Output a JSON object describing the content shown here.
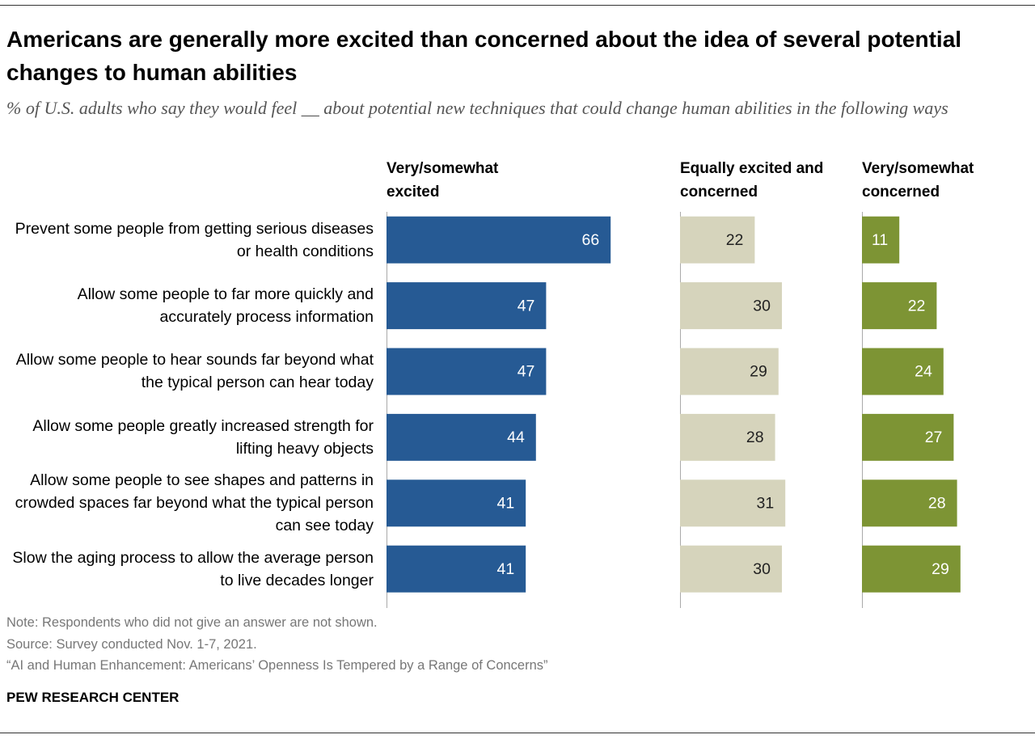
{
  "chart_data": {
    "type": "bar",
    "orientation": "horizontal",
    "title": "Americans are generally more excited than concerned about the idea of several potential changes to human abilities",
    "subtitle": "% of U.S. adults who say they would feel __ about potential new techniques that could change human abilities in the following ways",
    "categories": [
      "Prevent some people from getting serious diseases or health conditions",
      "Allow some people to far more quickly and accurately process information",
      "Allow some people to hear sounds far beyond what the typical person can hear today",
      "Allow some people greatly increased strength for lifting heavy objects",
      "Allow some people to see shapes and patterns in crowded spaces far beyond what the typical person can see today",
      "Slow the aging process to allow the average person to live decades longer"
    ],
    "series": [
      {
        "name": "Very/somewhat excited",
        "color": "#265a94",
        "label_color": "#ffffff",
        "values": [
          66,
          47,
          47,
          44,
          41,
          41
        ]
      },
      {
        "name": "Equally excited and concerned",
        "color": "#d6d4bc",
        "label_color": "#222222",
        "values": [
          22,
          30,
          29,
          28,
          31,
          30
        ]
      },
      {
        "name": "Very/somewhat concerned",
        "color": "#7d9434",
        "label_color": "#ffffff",
        "values": [
          11,
          22,
          24,
          27,
          28,
          29
        ]
      }
    ],
    "notes": [
      "Note: Respondents who did not give an answer are not shown.",
      "Source: Survey conducted Nov. 1-7, 2021.",
      "“AI and Human Enhancement: Americans’ Openness Is Tempered by a Range of Concerns”"
    ],
    "brand": "PEW RESEARCH CENTER"
  }
}
